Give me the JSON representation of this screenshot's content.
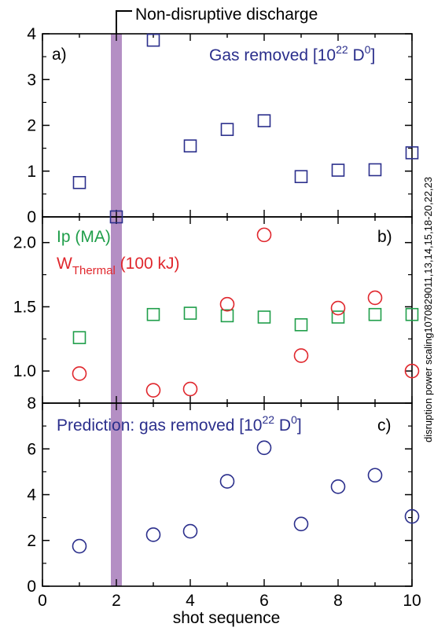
{
  "colors": {
    "blue": "#2b2f8c",
    "green": "#1f9e4a",
    "red": "#e0272d",
    "band": "#b48fc4",
    "axis": "#000000"
  },
  "chart_data": {
    "type": "scatter",
    "shared_x": {
      "label": "shot sequence",
      "range": [
        0,
        10
      ],
      "ticks": [
        "0",
        "2",
        "4",
        "6",
        "8",
        "10"
      ]
    },
    "annotation": {
      "text": "Non-disruptive discharge",
      "shot": 2
    },
    "side_label": "disruption power scaling1070829011,13,14,15,18-20,22,23",
    "panels": [
      {
        "tag": "a)",
        "ylim": [
          0,
          4
        ],
        "ticks": [
          "0",
          "1",
          "2",
          "3",
          "4"
        ],
        "series": [
          {
            "name_main": "Gas removed [10",
            "name_sup1": "22",
            "name_mid": " D",
            "name_sup2": "0",
            "name_end": "]",
            "marker": "square",
            "color": "blue",
            "x": [
              1,
              2,
              3,
              4,
              5,
              6,
              7,
              8,
              9,
              10
            ],
            "y": [
              0.75,
              0.0,
              3.86,
              1.55,
              1.91,
              2.1,
              0.88,
              1.02,
              1.03,
              1.4
            ]
          }
        ]
      },
      {
        "tag": "b)",
        "ylim": [
          0.75,
          2.2
        ],
        "ticks": [
          "1.0",
          "1.5",
          "2.0"
        ],
        "series": [
          {
            "name": "Ip (MA)",
            "marker": "square",
            "color": "green",
            "x": [
              1,
              3,
              4,
              5,
              6,
              7,
              8,
              9,
              10
            ],
            "y": [
              1.26,
              1.44,
              1.45,
              1.43,
              1.42,
              1.36,
              1.42,
              1.44,
              1.44
            ]
          },
          {
            "name_main": "W",
            "name_sub": "Thermal",
            "name_end": " (100 kJ)",
            "marker": "circle",
            "color": "red",
            "x": [
              1,
              3,
              4,
              5,
              6,
              7,
              8,
              9,
              10
            ],
            "y": [
              0.98,
              0.85,
              0.86,
              1.52,
              2.06,
              1.12,
              1.49,
              1.57,
              1.0
            ]
          }
        ]
      },
      {
        "tag": "c)",
        "ylim": [
          0,
          8
        ],
        "ticks": [
          "0",
          "2",
          "4",
          "6",
          "8"
        ],
        "series": [
          {
            "name_main": "Prediction: gas removed [10",
            "name_sup1": "22",
            "name_mid": " D",
            "name_sup2": "0",
            "name_end": "]",
            "marker": "circle",
            "color": "blue",
            "x": [
              1,
              3,
              4,
              5,
              6,
              7,
              8,
              9,
              10
            ],
            "y": [
              1.75,
              2.25,
              2.4,
              4.58,
              6.05,
              2.72,
              4.35,
              4.85,
              3.05
            ]
          }
        ]
      }
    ]
  }
}
